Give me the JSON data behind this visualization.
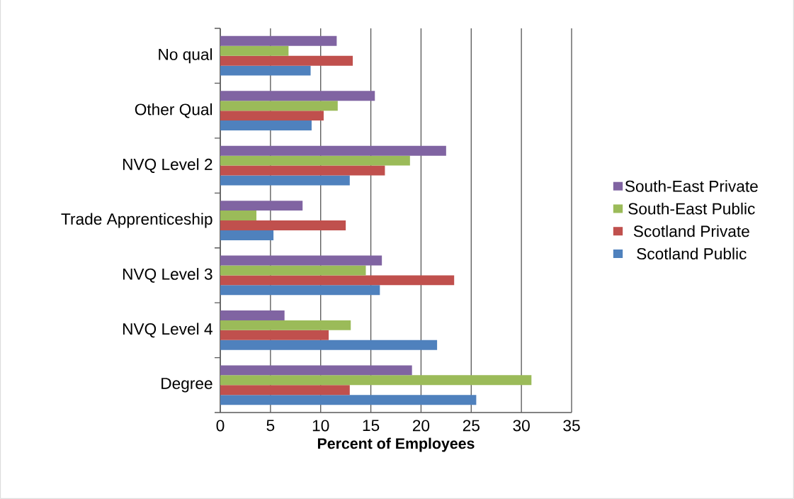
{
  "chart_data": {
    "type": "bar",
    "orientation": "horizontal",
    "xlabel": "Percent of Employees",
    "categories": [
      "No qual",
      "Other Qual",
      "NVQ Level 2",
      "Trade Apprenticeship",
      "NVQ Level 3",
      "NVQ Level 4",
      "Degree"
    ],
    "series": [
      {
        "name": "Scotland Public",
        "color": "#4f81bd",
        "values": [
          9.0,
          9.1,
          12.9,
          5.3,
          15.9,
          21.6,
          25.5
        ]
      },
      {
        "name": "Scotland Private",
        "color": "#c0504d",
        "values": [
          13.2,
          10.3,
          16.4,
          12.5,
          23.3,
          10.8,
          12.9
        ]
      },
      {
        "name": "South-East Public",
        "color": "#9bbb59",
        "values": [
          6.8,
          11.7,
          18.9,
          3.6,
          14.5,
          13.0,
          31.0
        ]
      },
      {
        "name": "South-East Private",
        "color": "#8064a2",
        "values": [
          11.6,
          15.4,
          22.5,
          8.2,
          16.1,
          6.4,
          19.1
        ]
      }
    ],
    "xlim": [
      0,
      35
    ],
    "xticks": [
      0,
      5,
      10,
      15,
      20,
      25,
      30,
      35
    ],
    "grid": "x",
    "legend": "right"
  }
}
